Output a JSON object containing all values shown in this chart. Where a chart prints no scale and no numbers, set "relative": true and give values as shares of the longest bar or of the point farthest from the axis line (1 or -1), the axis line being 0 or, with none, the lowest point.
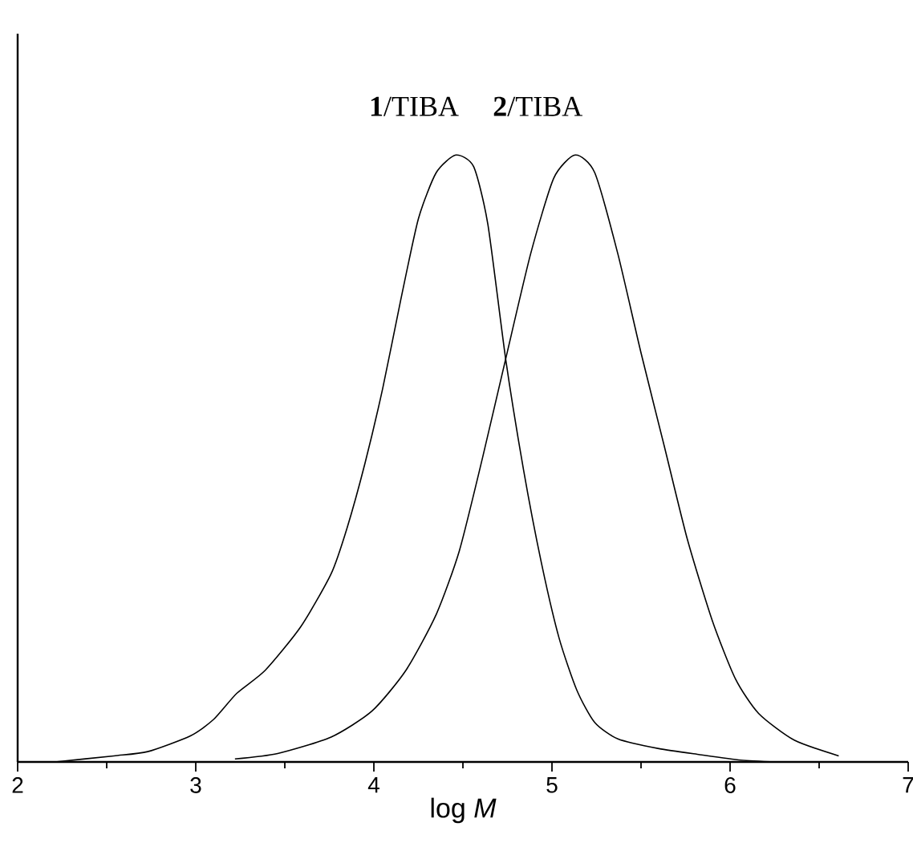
{
  "chart_data": {
    "type": "line",
    "relative": true,
    "xlabel": "log *M*",
    "annotations": [
      "**1**/TIBA",
      "**2**/TIBA"
    ],
    "xlim": [
      2,
      7
    ],
    "xticks": [
      2,
      3,
      4,
      5,
      6,
      7
    ],
    "marker": "none",
    "line_style": "solid",
    "series": [
      {
        "color": "#000000",
        "x": [
          2.21,
          2.54,
          2.73,
          2.97,
          3.1,
          3.23,
          3.39,
          3.59,
          3.76,
          3.85,
          3.95,
          4.05,
          4.15,
          4.25,
          4.35,
          4.46,
          4.56,
          4.64,
          4.74,
          4.84,
          4.94,
          5.04,
          5.14,
          5.24,
          5.37,
          5.6,
          5.83,
          6.06,
          6.26
        ],
        "values": [
          0,
          0.01,
          0.017,
          0.043,
          0.07,
          0.113,
          0.151,
          0.223,
          0.31,
          0.386,
          0.492,
          0.616,
          0.76,
          0.895,
          0.971,
          1.0,
          0.981,
          0.886,
          0.664,
          0.482,
          0.329,
          0.204,
          0.118,
          0.065,
          0.038,
          0.022,
          0.012,
          0.003,
          0
        ]
      },
      {
        "color": "#000000",
        "x": [
          3.22,
          3.46,
          3.76,
          3.99,
          4.18,
          4.35,
          4.48,
          4.61,
          4.74,
          4.88,
          5.01,
          5.13,
          5.24,
          5.37,
          5.5,
          5.63,
          5.76,
          5.9,
          6.03,
          6.16,
          6.36,
          6.61
        ],
        "values": [
          0.005,
          0.014,
          0.041,
          0.084,
          0.151,
          0.243,
          0.348,
          0.501,
          0.664,
          0.837,
          0.962,
          1.0,
          0.971,
          0.837,
          0.674,
          0.521,
          0.367,
          0.233,
          0.137,
          0.08,
          0.036,
          0.01
        ]
      }
    ]
  }
}
